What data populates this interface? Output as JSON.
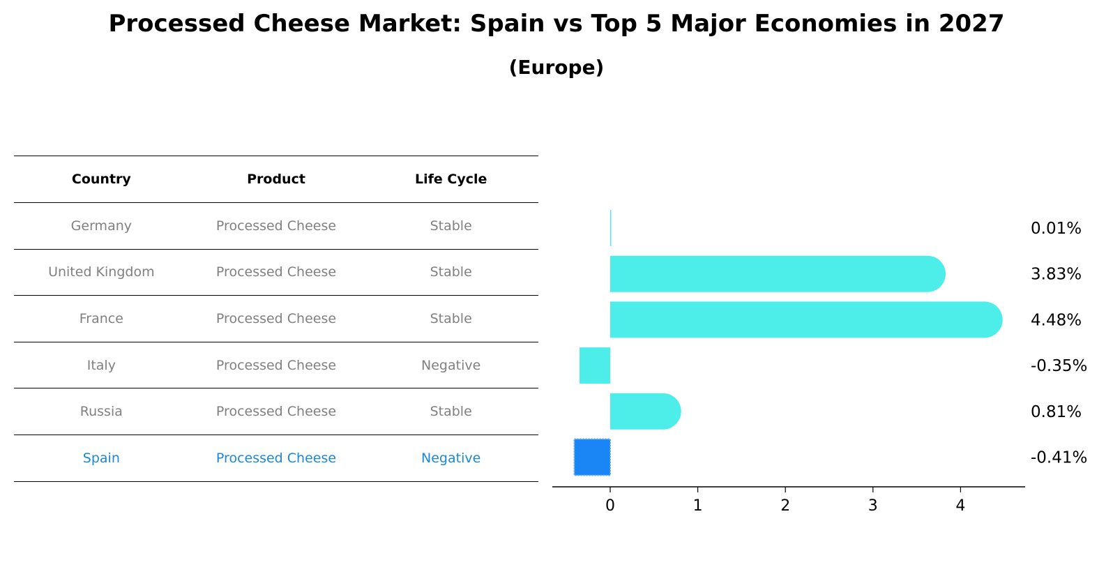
{
  "title": "Processed Cheese Market: Spain vs Top 5 Major Economies in 2027",
  "subtitle": "(Europe)",
  "table": {
    "headers": [
      "Country",
      "Product",
      "Life Cycle"
    ],
    "rows": [
      [
        "Germany",
        "Processed Cheese",
        "Stable"
      ],
      [
        "United Kingdom",
        "Processed Cheese",
        "Stable"
      ],
      [
        "France",
        "Processed Cheese",
        "Stable"
      ],
      [
        "Italy",
        "Processed Cheese",
        "Negative"
      ],
      [
        "Russia",
        "Processed Cheese",
        "Stable"
      ],
      [
        "Spain",
        "Processed Cheese",
        "Negative"
      ]
    ],
    "highlight_row": 5
  },
  "colors": {
    "bar": "#4deeea",
    "highlight_bar": "#1a85f5",
    "highlight_text": "#1a88d9",
    "muted_text": "#808080"
  },
  "chart_data": {
    "type": "bar",
    "orientation": "horizontal",
    "categories": [
      "Germany",
      "United Kingdom",
      "France",
      "Italy",
      "Russia",
      "Spain"
    ],
    "values": [
      0.01,
      3.83,
      4.48,
      -0.35,
      0.81,
      -0.41
    ],
    "labels": [
      "0.01%",
      "3.83%",
      "4.48%",
      "-0.35%",
      "0.81%",
      "-0.41%"
    ],
    "highlight_index": 5,
    "xlim": [
      -0.66,
      4.72
    ],
    "xticks": [
      0,
      1,
      2,
      3,
      4
    ],
    "xlabel": "",
    "ylabel": ""
  }
}
